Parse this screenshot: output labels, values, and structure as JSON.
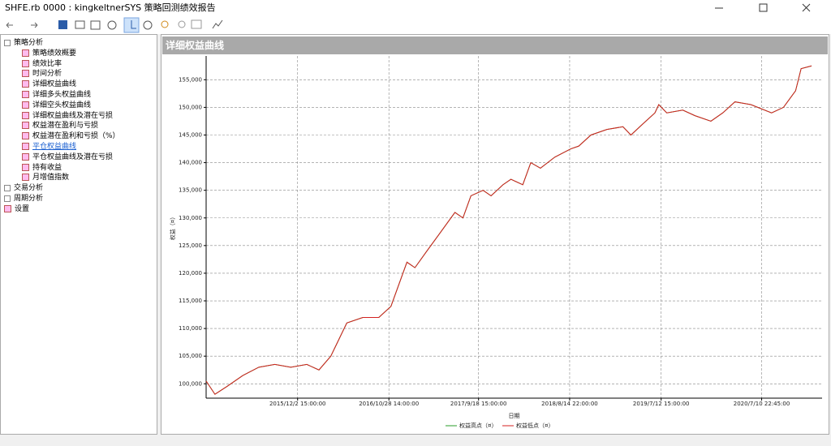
{
  "window": {
    "title": "SHFE.rb 0000 : kingkeltnerSYS 策略回测绩效报告"
  },
  "tree": {
    "items": [
      {
        "label": "策略分析",
        "children": [
          "策略绩效概要",
          "绩效比率",
          "时间分析",
          "详细权益曲线",
          "详细多头权益曲线",
          "详细空头权益曲线",
          "详细权益曲线及潜在亏损",
          "权益潜在盈利与亏损",
          "权益潜在盈利和亏损（%）",
          "平仓权益曲线",
          "平仓权益曲线及潜在亏损",
          "持有收益",
          "月增值指数"
        ]
      },
      {
        "label": "交易分析"
      },
      {
        "label": "周期分析"
      },
      {
        "label": "设置"
      }
    ],
    "selected": "平仓权益曲线"
  },
  "panel": {
    "title": "详细权益曲线"
  },
  "chart_data": {
    "type": "line",
    "x_label": "日期",
    "y_label": "权益（¤）",
    "x": [
      "2015/1/5",
      "2015/2/6",
      "2015/3/21",
      "2015/5/18",
      "2015/7/15",
      "2015/9/11",
      "2015/11/8",
      "2016/1/5",
      "2016/2/18",
      "2016/4/1",
      "2016/4/30",
      "2016/5/29",
      "2016/7/26",
      "2016/9/22",
      "2016/11/5",
      "2016/12/4",
      "2017/1/2",
      "2017/1/31",
      "2017/3/15",
      "2017/4/28",
      "2017/5/27",
      "2017/6/25",
      "2017/7/24",
      "2017/8/22",
      "2017/10/5",
      "2017/11/3",
      "2017/12/16",
      "2018/1/14",
      "2018/2/26",
      "2018/3/27",
      "2018/5/1",
      "2018/6/22",
      "2018/8/19",
      "2018/9/17",
      "2018/10/31",
      "2018/12/28",
      "2019/2/24",
      "2019/3/25",
      "2019/5/7",
      "2019/6/20",
      "2019/7/4",
      "2019/8/2",
      "2019/9/29",
      "2019/11/12",
      "2020/1/9",
      "2020/2/21",
      "2020/4/5",
      "2020/6/2",
      "2020/8/16",
      "2020/9/28",
      "2020/11/11",
      "2020/12/1",
      "2021/1/8"
    ],
    "series": [
      {
        "name": "权益高点（¤）",
        "color": "#2a9d2a",
        "values": [
          100500,
          98100,
          99500,
          101500,
          103000,
          103500,
          103000,
          103500,
          102500,
          105000,
          108000,
          111000,
          112000,
          112000,
          114000,
          118000,
          122000,
          121000,
          124000,
          127000,
          129000,
          131000,
          130000,
          134000,
          135000,
          134000,
          136000,
          137000,
          136000,
          140000,
          139000,
          141000,
          142500,
          143000,
          145000,
          146000,
          146500,
          145000,
          147000,
          149000,
          150500,
          149000,
          149500,
          148500,
          147500,
          149000,
          151000,
          150500,
          149000,
          150000,
          153000,
          157000,
          157500
        ]
      },
      {
        "name": "权益低点（¤）",
        "color": "#d42020",
        "values": [
          100500,
          98100,
          99500,
          101500,
          103000,
          103500,
          103000,
          103500,
          102500,
          105000,
          108000,
          111000,
          112000,
          112000,
          114000,
          118000,
          122000,
          121000,
          124000,
          127000,
          129000,
          131000,
          130000,
          134000,
          135000,
          134000,
          136000,
          137000,
          136000,
          140000,
          139000,
          141000,
          142500,
          143000,
          145000,
          146000,
          146500,
          145000,
          147000,
          149000,
          150500,
          149000,
          149500,
          148500,
          147500,
          149000,
          151000,
          150500,
          149000,
          150000,
          153000,
          157000,
          157500
        ]
      }
    ],
    "xlim": [
      "2015/1/5",
      "2021/2/15"
    ],
    "xticks": [
      "2015/12/2 15:00:00",
      "2016/10/28 14:00:00",
      "2017/9/18 15:00:00",
      "2018/8/14 22:00:00",
      "2019/7/12 15:00:00",
      "2020/7/10 22:45:00"
    ],
    "ylim": [
      97400,
      159300
    ],
    "yticks": [
      {
        "value": 100000,
        "label": "100,000"
      },
      {
        "value": 105000,
        "label": "105,000"
      },
      {
        "value": 110000,
        "label": "110,000"
      },
      {
        "value": 115000,
        "label": "115,000"
      },
      {
        "value": 120000,
        "label": "120,000"
      },
      {
        "value": 125000,
        "label": "125,000"
      },
      {
        "value": 130000,
        "label": "130,000"
      },
      {
        "value": 135000,
        "label": "135,000"
      },
      {
        "value": 140000,
        "label": "140,000"
      },
      {
        "value": 145000,
        "label": "145,000"
      },
      {
        "value": 150000,
        "label": "150,000"
      },
      {
        "value": 155000,
        "label": "155,000"
      }
    ],
    "grid": true
  }
}
